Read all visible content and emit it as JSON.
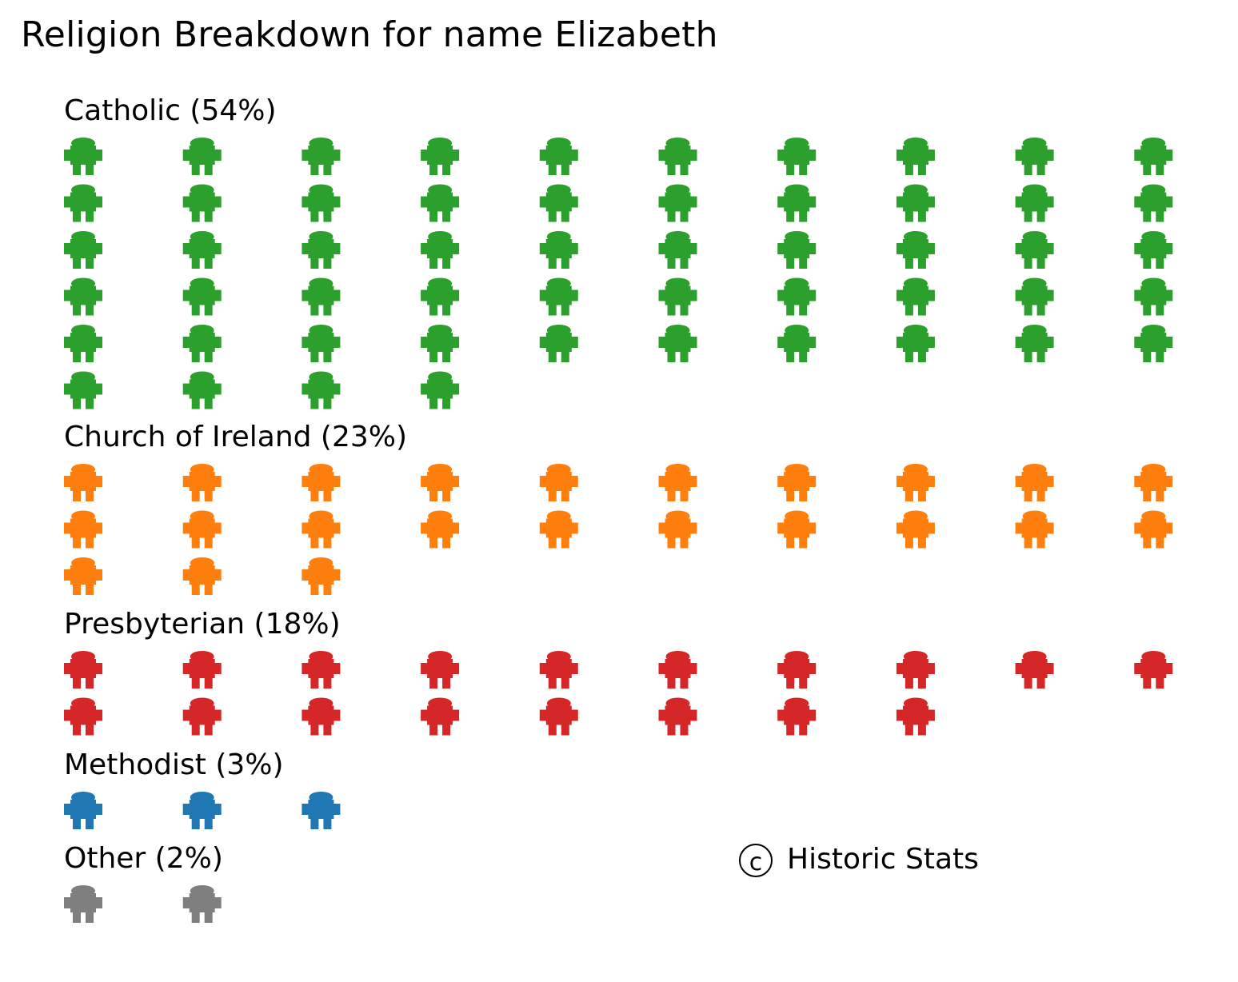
{
  "chart_data": {
    "type": "waffle",
    "title": "Religion Breakdown for name Elizabeth",
    "icon": "person-icon",
    "icons_per_row": 10,
    "groups": [
      {
        "name": "Catholic",
        "label": "Catholic (54%)",
        "percent": 54,
        "icons": 54,
        "color": "#2ca02c"
      },
      {
        "name": "Church of Ireland",
        "label": "Church of Ireland (23%)",
        "percent": 23,
        "icons": 23,
        "color": "#ff7f0e"
      },
      {
        "name": "Presbyterian",
        "label": "Presbyterian (18%)",
        "percent": 18,
        "icons": 18,
        "color": "#d62728"
      },
      {
        "name": "Methodist",
        "label": "Methodist (3%)",
        "percent": 3,
        "icons": 3,
        "color": "#1f77b4"
      },
      {
        "name": "Other",
        "label": "Other (2%)",
        "percent": 2,
        "icons": 2,
        "color": "#7f7f7f"
      }
    ]
  },
  "credit": {
    "symbol": "c",
    "text": "Historic Stats"
  }
}
